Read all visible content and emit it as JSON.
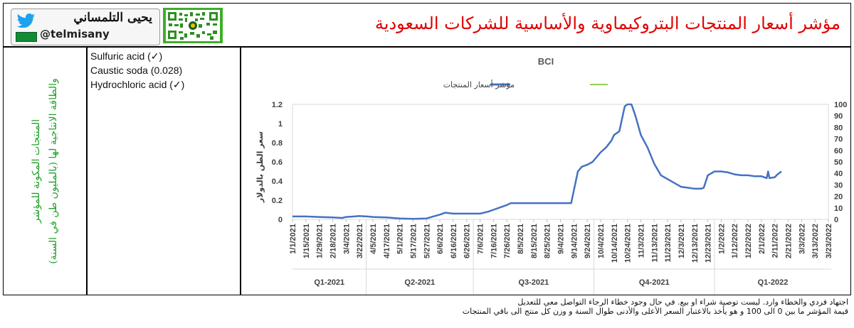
{
  "header": {
    "title": "مؤشر أسعار المنتجات البتروكيماوية والأساسية للشركات السعودية",
    "brand_name": "يحيى التلمساني",
    "handle": "@telmisany"
  },
  "left_panel": {
    "line1": "المنتجات المكونة للمؤشر",
    "line2": "والطاقة الانتاجية لها (بالمليون طن في السنة)"
  },
  "products": [
    {
      "label": "Sulfuric acid (✓)"
    },
    {
      "label": "Caustic soda (0.028)"
    },
    {
      "label": "Hydrochloric acid (✓)"
    }
  ],
  "footer": {
    "line1": "اجتهاد فردي والخطاء وارد. ليست توصية شراء او بيع. في حال وجود خطاء الرجاء التواصل معي للتعديل",
    "line2": "قيمة المؤشر ما بين 0 الى 100 و هو يأخذ بالاعتبار السعر الأعلى والأدنى طوال السنة و وزن كل منتج الى باقي المنتجات"
  },
  "chart_data": {
    "type": "line",
    "title": "BCI",
    "ylabel": "سعر الطن بالدولار",
    "ylim": [
      0,
      1.2
    ],
    "y_ticks": [
      "0",
      "0.2",
      "0.4",
      "0.6",
      "0.8",
      "1",
      "1.2"
    ],
    "y2lim": [
      0,
      100
    ],
    "y2_ticks": [
      "0",
      "10",
      "20",
      "30",
      "40",
      "50",
      "60",
      "70",
      "80",
      "90",
      "100"
    ],
    "x_tick_labels": [
      "1/1/2021",
      "1/15/2021",
      "1/29/2021",
      "2/18/2021",
      "3/4/2021",
      "3/22/2021",
      "4/5/2021",
      "4/17/2021",
      "5/1/2021",
      "5/17/2021",
      "5/27/2021",
      "6/6/2021",
      "6/16/2021",
      "6/26/2021",
      "7/6/2021",
      "7/16/2021",
      "7/26/2021",
      "8/5/2021",
      "8/15/2021",
      "8/25/2021",
      "9/4/2021",
      "9/14/2021",
      "9/24/2021",
      "10/4/2021",
      "10/14/2021",
      "10/24/2021",
      "11/3/2021",
      "11/13/2021",
      "11/23/2021",
      "12/3/2021",
      "12/13/2021",
      "12/23/2021",
      "1/2/2022",
      "1/12/2022",
      "1/22/2022",
      "2/1/2022",
      "2/11/2022",
      "2/21/2022",
      "3/3/2022",
      "3/13/2022",
      "3/23/2022"
    ],
    "quarters": [
      "Q1-2021",
      "Q2-2021",
      "Q3-2021",
      "Q4-2021",
      "Q1-2022"
    ],
    "quarter_end_tick": [
      5,
      13,
      22,
      31,
      40
    ],
    "series": [
      {
        "name": "مؤشر أسعار المنتجات",
        "color": "#4472c4",
        "points": [
          [
            "1/1/2021",
            0.03
          ],
          [
            "1/15/2021",
            0.03
          ],
          [
            "1/29/2021",
            0.025
          ],
          [
            "2/18/2021",
            0.02
          ],
          [
            "2/28/2021",
            0.015
          ],
          [
            "3/4/2021",
            0.025
          ],
          [
            "3/15/2021",
            0.03
          ],
          [
            "3/22/2021",
            0.035
          ],
          [
            "3/30/2021",
            0.03
          ],
          [
            "4/5/2021",
            0.025
          ],
          [
            "4/17/2021",
            0.02
          ],
          [
            "5/1/2021",
            0.01
          ],
          [
            "5/17/2021",
            0.005
          ],
          [
            "5/27/2021",
            0.01
          ],
          [
            "6/1/2021",
            0.03
          ],
          [
            "6/6/2021",
            0.05
          ],
          [
            "6/10/2021",
            0.07
          ],
          [
            "6/16/2021",
            0.06
          ],
          [
            "6/26/2021",
            0.06
          ],
          [
            "7/6/2021",
            0.06
          ],
          [
            "7/12/2021",
            0.08
          ],
          [
            "7/16/2021",
            0.1
          ],
          [
            "7/22/2021",
            0.13
          ],
          [
            "7/26/2021",
            0.15
          ],
          [
            "7/29/2021",
            0.17
          ],
          [
            "8/5/2021",
            0.17
          ],
          [
            "8/15/2021",
            0.17
          ],
          [
            "8/25/2021",
            0.17
          ],
          [
            "9/4/2021",
            0.17
          ],
          [
            "9/12/2021",
            0.17
          ],
          [
            "9/14/2021",
            0.3
          ],
          [
            "9/17/2021",
            0.5
          ],
          [
            "9/20/2021",
            0.55
          ],
          [
            "9/24/2021",
            0.57
          ],
          [
            "9/28/2021",
            0.6
          ],
          [
            "10/1/2021",
            0.65
          ],
          [
            "10/4/2021",
            0.7
          ],
          [
            "10/8/2021",
            0.75
          ],
          [
            "10/12/2021",
            0.82
          ],
          [
            "10/14/2021",
            0.88
          ],
          [
            "10/18/2021",
            0.92
          ],
          [
            "10/20/2021",
            1.05
          ],
          [
            "10/22/2021",
            1.18
          ],
          [
            "10/24/2021",
            1.22
          ],
          [
            "10/27/2021",
            1.22
          ],
          [
            "10/30/2021",
            1.08
          ],
          [
            "11/3/2021",
            0.88
          ],
          [
            "11/8/2021",
            0.75
          ],
          [
            "11/13/2021",
            0.58
          ],
          [
            "11/18/2021",
            0.46
          ],
          [
            "11/23/2021",
            0.42
          ],
          [
            "11/28/2021",
            0.38
          ],
          [
            "12/3/2021",
            0.34
          ],
          [
            "12/8/2021",
            0.33
          ],
          [
            "12/13/2021",
            0.32
          ],
          [
            "12/18/2021",
            0.32
          ],
          [
            "12/20/2021",
            0.33
          ],
          [
            "12/23/2021",
            0.46
          ],
          [
            "12/28/2021",
            0.5
          ],
          [
            "1/2/2022",
            0.5
          ],
          [
            "1/7/2022",
            0.49
          ],
          [
            "1/12/2022",
            0.47
          ],
          [
            "1/17/2022",
            0.46
          ],
          [
            "1/22/2022",
            0.46
          ],
          [
            "1/27/2022",
            0.45
          ],
          [
            "2/1/2022",
            0.45
          ],
          [
            "2/3/2022",
            0.44
          ],
          [
            "2/5/2022",
            0.43
          ],
          [
            "2/6/2022",
            0.5
          ],
          [
            "2/7/2022",
            0.43
          ],
          [
            "2/11/2022",
            0.44
          ],
          [
            "2/13/2022",
            0.47
          ],
          [
            "2/16/2022",
            0.5
          ]
        ]
      },
      {
        "name": "",
        "color": "#92d050",
        "points": []
      }
    ]
  }
}
